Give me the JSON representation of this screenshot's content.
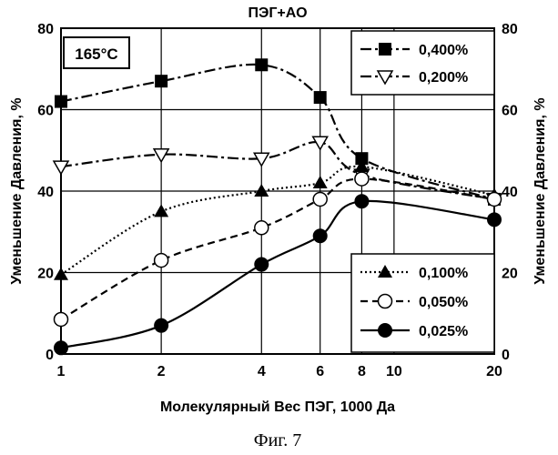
{
  "chart_data": {
    "type": "line",
    "title": "ПЭГ+АО",
    "annotation": "165°С",
    "xlabel": "Молекулярный Вес ПЭГ, 1000 Да",
    "ylabel_left": "Уменьшение Давления, %",
    "ylabel_right": "Уменьшение Давления, %",
    "x_scale": "log",
    "xlim": [
      1,
      20
    ],
    "ylim": [
      0,
      80
    ],
    "x_ticks": [
      1,
      2,
      4,
      6,
      8,
      10,
      20
    ],
    "y_ticks": [
      0,
      20,
      40,
      60,
      80
    ],
    "grid": true,
    "legend_upper_position": "top-right",
    "legend_lower_position": "bottom-right",
    "series": [
      {
        "name": "0,400%",
        "marker": "filled-square",
        "dash": "dash-dot",
        "x": [
          1,
          2,
          4,
          6,
          8,
          20
        ],
        "y": [
          62,
          67,
          71,
          63,
          48,
          38
        ]
      },
      {
        "name": "0,200%",
        "marker": "open-triangle-down",
        "dash": "dash-dot",
        "x": [
          1,
          2,
          4,
          6,
          8,
          20
        ],
        "y": [
          46,
          49,
          48,
          52,
          44,
          38
        ]
      },
      {
        "name": "0,100%",
        "marker": "filled-triangle-up",
        "dash": "dotted",
        "x": [
          1,
          2,
          4,
          6,
          8,
          20
        ],
        "y": [
          19.5,
          35,
          40,
          42,
          46,
          39
        ]
      },
      {
        "name": "0,050%",
        "marker": "open-circle",
        "dash": "dashed",
        "x": [
          1,
          2,
          4,
          6,
          8,
          20
        ],
        "y": [
          8.5,
          23,
          31,
          38,
          43,
          38
        ]
      },
      {
        "name": "0,025%",
        "marker": "filled-circle",
        "dash": "solid",
        "x": [
          1,
          2,
          4,
          6,
          8,
          20
        ],
        "y": [
          1.5,
          7,
          22,
          29,
          37.5,
          33
        ]
      }
    ],
    "legend_upper": [
      "0,400%",
      "0,200%"
    ],
    "legend_lower": [
      "0,100%",
      "0,050%",
      "0,025%"
    ]
  },
  "caption": "Фиг. 7"
}
